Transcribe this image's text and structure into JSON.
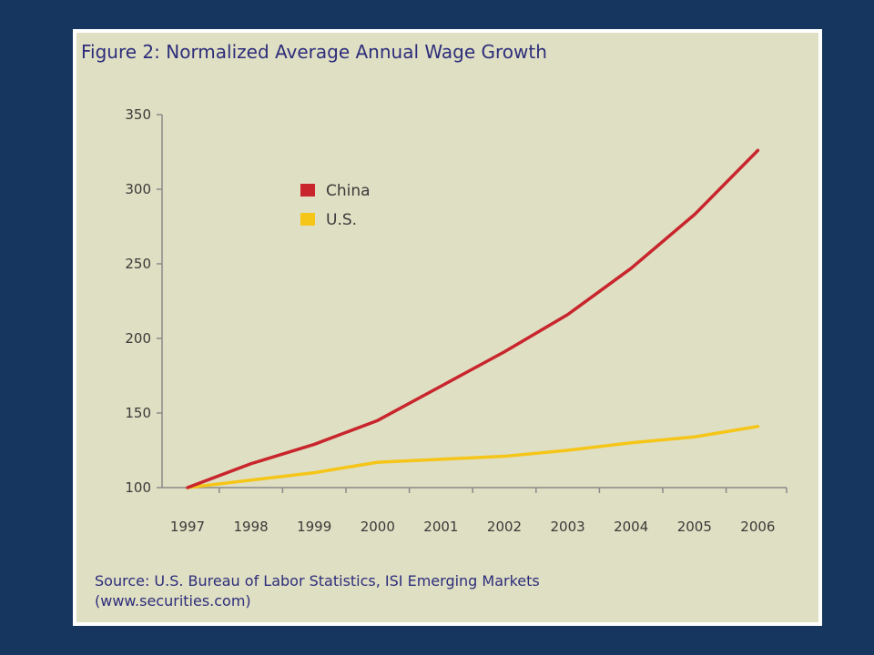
{
  "figure": {
    "title": "Figure 2: Normalized Average Annual Wage Growth",
    "source_line1": "Source: U.S. Bureau of Labor Statistics, ISI Emerging Markets",
    "source_line2": "(www.securities.com)"
  },
  "colors": {
    "background": "#17365f",
    "panel": "#dfdfc3",
    "china": "#c8252c",
    "us": "#f5c518",
    "text": "#2d2d7c"
  },
  "chart_data": {
    "type": "line",
    "title": "Figure 2: Normalized Average Annual Wage Growth",
    "xlabel": "",
    "ylabel": "",
    "x": [
      "1997",
      "1998",
      "1999",
      "2000",
      "2001",
      "2002",
      "2003",
      "2004",
      "2005",
      "2006"
    ],
    "ylim": [
      100,
      350
    ],
    "yticks": [
      100,
      150,
      200,
      250,
      300,
      350
    ],
    "grid": false,
    "legend_position": "upper-left",
    "series": [
      {
        "name": "China",
        "color": "#c8252c",
        "values": [
          100,
          116,
          129,
          145,
          168,
          191,
          216,
          247,
          283,
          326
        ]
      },
      {
        "name": "U.S.",
        "color": "#f5c518",
        "values": [
          100,
          105,
          110,
          117,
          119,
          121,
          125,
          130,
          134,
          141
        ]
      }
    ]
  }
}
